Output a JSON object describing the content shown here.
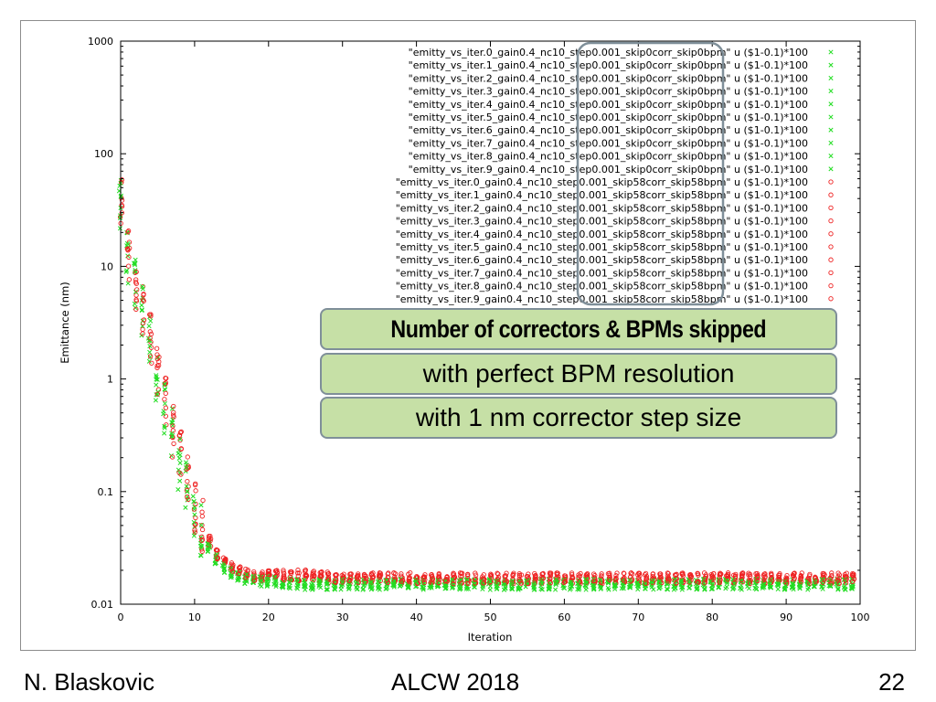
{
  "footer": {
    "author": "N. Blaskovic",
    "event": "ALCW 2018",
    "page_number": "22"
  },
  "callouts": {
    "line1": "Number of correctors & BPMs skipped",
    "line2": "with perfect BPM resolution",
    "line3": "with 1 nm corrector step size"
  },
  "colors": {
    "series_skip0": "#22dd22",
    "series_skip58": "#ee2222",
    "callout_fill": "#c6e0a6",
    "callout_border": "#7f8f99",
    "highlight_border": "#7f8f99"
  },
  "chart_data": {
    "type": "scatter",
    "xlabel": "Iteration",
    "ylabel": "Emittance (nm)",
    "xlim": [
      0,
      100
    ],
    "ylim": [
      0.01,
      1000
    ],
    "yscale": "log",
    "x_ticks": [
      "0",
      "10",
      "20",
      "30",
      "40",
      "50",
      "60",
      "70",
      "80",
      "90",
      "100"
    ],
    "y_ticks": [
      "0.01",
      "0.1",
      "1",
      "10",
      "100",
      "1000"
    ],
    "grid": false,
    "legend_position": "top-right",
    "legend": [
      "\"emitty_vs_iter.0_gain0.4_nc10_step0.001_skip0corr_skip0bpm\" u ($1-0.1)*100",
      "\"emitty_vs_iter.1_gain0.4_nc10_step0.001_skip0corr_skip0bpm\" u ($1-0.1)*100",
      "\"emitty_vs_iter.2_gain0.4_nc10_step0.001_skip0corr_skip0bpm\" u ($1-0.1)*100",
      "\"emitty_vs_iter.3_gain0.4_nc10_step0.001_skip0corr_skip0bpm\" u ($1-0.1)*100",
      "\"emitty_vs_iter.4_gain0.4_nc10_step0.001_skip0corr_skip0bpm\" u ($1-0.1)*100",
      "\"emitty_vs_iter.5_gain0.4_nc10_step0.001_skip0corr_skip0bpm\" u ($1-0.1)*100",
      "\"emitty_vs_iter.6_gain0.4_nc10_step0.001_skip0corr_skip0bpm\" u ($1-0.1)*100",
      "\"emitty_vs_iter.7_gain0.4_nc10_step0.001_skip0corr_skip0bpm\" u ($1-0.1)*100",
      "\"emitty_vs_iter.8_gain0.4_nc10_step0.001_skip0corr_skip0bpm\" u ($1-0.1)*100",
      "\"emitty_vs_iter.9_gain0.4_nc10_step0.001_skip0corr_skip0bpm\" u ($1-0.1)*100",
      "\"emitty_vs_iter.0_gain0.4_nc10_step0.001_skip58corr_skip58bpm\" u ($1-0.1)*100",
      "\"emitty_vs_iter.1_gain0.4_nc10_step0.001_skip58corr_skip58bpm\" u ($1-0.1)*100",
      "\"emitty_vs_iter.2_gain0.4_nc10_step0.001_skip58corr_skip58bpm\" u ($1-0.1)*100",
      "\"emitty_vs_iter.3_gain0.4_nc10_step0.001_skip58corr_skip58bpm\" u ($1-0.1)*100",
      "\"emitty_vs_iter.4_gain0.4_nc10_step0.001_skip58corr_skip58bpm\" u ($1-0.1)*100",
      "\"emitty_vs_iter.5_gain0.4_nc10_step0.001_skip58corr_skip58bpm\" u ($1-0.1)*100",
      "\"emitty_vs_iter.6_gain0.4_nc10_step0.001_skip58corr_skip58bpm\" u ($1-0.1)*100",
      "\"emitty_vs_iter.7_gain0.4_nc10_step0.001_skip58corr_skip58bpm\" u ($1-0.1)*100",
      "\"emitty_vs_iter.8_gain0.4_nc10_step0.001_skip58corr_skip58bpm\" u ($1-0.1)*100",
      "\"emitty_vs_iter.9_gain0.4_nc10_step0.001_skip58corr_skip58bpm\" u ($1-0.1)*100"
    ],
    "series_groups": [
      {
        "name": "skip0corr_skip0bpm",
        "marker": "cross",
        "color": "#22dd22",
        "legend_count": 10
      },
      {
        "name": "skip58corr_skip58bpm",
        "marker": "circle",
        "color": "#ee2222",
        "legend_count": 10
      }
    ],
    "representative_envelope": {
      "x": [
        0,
        1,
        2,
        3,
        4,
        5,
        6,
        7,
        8,
        9,
        10,
        11,
        12,
        13,
        14,
        15,
        16,
        17,
        18,
        20,
        25,
        30,
        40,
        50,
        60,
        70,
        80,
        90,
        99
      ],
      "skip0_median": [
        35,
        12,
        7,
        4,
        2.2,
        1.0,
        0.55,
        0.32,
        0.18,
        0.11,
        0.07,
        0.045,
        0.032,
        0.025,
        0.021,
        0.019,
        0.018,
        0.017,
        0.016,
        0.016,
        0.015,
        0.015,
        0.015,
        0.015,
        0.015,
        0.015,
        0.015,
        0.015,
        0.015
      ],
      "skip58_median": [
        35,
        12,
        7,
        4,
        2.3,
        1.1,
        0.6,
        0.35,
        0.2,
        0.12,
        0.075,
        0.05,
        0.036,
        0.028,
        0.024,
        0.021,
        0.02,
        0.019,
        0.018,
        0.018,
        0.018,
        0.017,
        0.017,
        0.017,
        0.017,
        0.017,
        0.017,
        0.017,
        0.017
      ],
      "spread_factor_early": 3.0,
      "spread_factor_late": 1.25
    }
  }
}
